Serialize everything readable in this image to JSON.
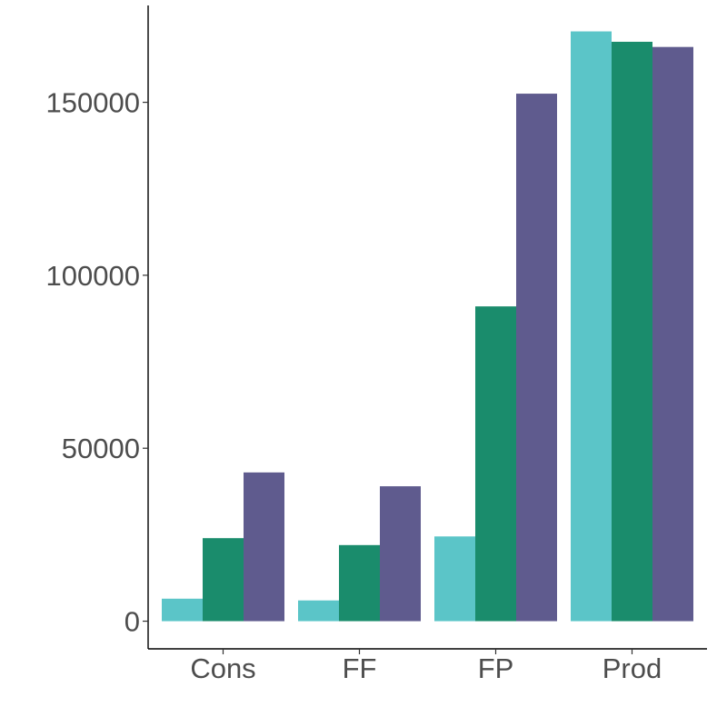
{
  "chart_data": {
    "type": "bar",
    "categories": [
      "Cons",
      "FF",
      "FP",
      "Prod"
    ],
    "series": [
      {
        "color": "#5bc5c8",
        "values": [
          6500,
          6000,
          24500,
          170500
        ]
      },
      {
        "color": "#1a8c6c",
        "values": [
          24000,
          22000,
          91000,
          167500
        ]
      },
      {
        "color": "#5f5b8e",
        "values": [
          43000,
          39000,
          152500,
          166000
        ]
      }
    ],
    "yticks": [
      0,
      50000,
      100000,
      150000
    ],
    "ytick_labels": [
      "0",
      "50000",
      "100000",
      "150000"
    ],
    "ylim": [
      -8000,
      178000
    ],
    "grid": false,
    "legend": "none",
    "xlabel": "",
    "ylabel": ""
  }
}
